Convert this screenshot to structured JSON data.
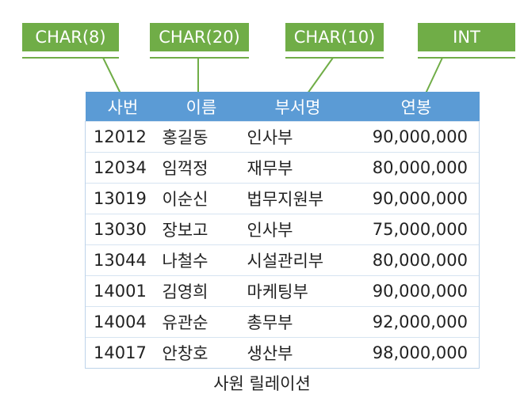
{
  "types": [
    "CHAR(8)",
    "CHAR(20)",
    "CHAR(10)",
    "INT"
  ],
  "table": {
    "headers": [
      "사번",
      "이름",
      "부서명",
      "연봉"
    ],
    "rows": [
      [
        "12012",
        "홍길동",
        "인사부",
        "90,000,000"
      ],
      [
        "12034",
        "임꺽정",
        "재무부",
        "80,000,000"
      ],
      [
        "13019",
        "이순신",
        "법무지원부",
        "90,000,000"
      ],
      [
        "13030",
        "장보고",
        "인사부",
        "75,000,000"
      ],
      [
        "13044",
        "나철수",
        "시설관리부",
        "80,000,000"
      ],
      [
        "14001",
        "김영희",
        "마케팅부",
        "90,000,000"
      ],
      [
        "14004",
        "유관순",
        "총무부",
        "92,000,000"
      ],
      [
        "14017",
        "안창호",
        "생산부",
        "98,000,000"
      ]
    ]
  },
  "caption": "사원 릴레이션",
  "colors": {
    "type_box": "#70ad47",
    "header": "#5b9bd5"
  }
}
